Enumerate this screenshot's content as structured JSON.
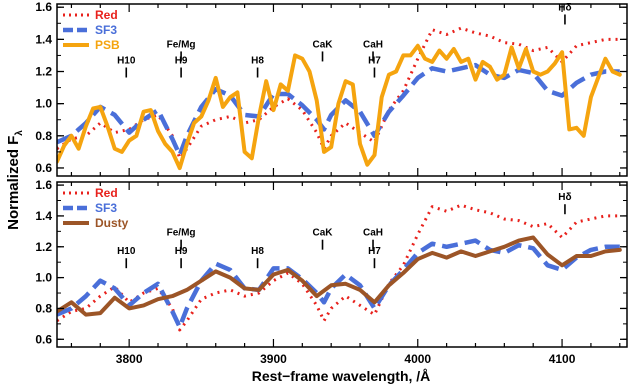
{
  "figure": {
    "ylabel_main": "Normalized F",
    "ylabel_sub": "λ",
    "xlabel": "Rest−frame wavelength, /Å"
  },
  "colors": {
    "red": "#e8211c",
    "sf3": "#4a6fd9",
    "psb": "#f5a40f",
    "dusty": "#9c5527"
  },
  "chart_data": [
    {
      "type": "line",
      "panel": "top",
      "xlim": [
        3750,
        4145
      ],
      "ylim": [
        0.55,
        1.62
      ],
      "xticks": [
        3800,
        3900,
        4000,
        4100
      ],
      "yticks": [
        0.6,
        0.8,
        1.0,
        1.2,
        1.4,
        1.6
      ],
      "grid": false,
      "legend_position": "top-left",
      "annotations": [
        {
          "label": "H10",
          "x": 3798,
          "y": 1.2
        },
        {
          "label": "Fe/Mg",
          "x": 3836,
          "y": 1.3
        },
        {
          "label": "H9",
          "x": 3836,
          "y": 1.2
        },
        {
          "label": "H8",
          "x": 3889,
          "y": 1.2
        },
        {
          "label": "CaK",
          "x": 3934,
          "y": 1.3
        },
        {
          "label": "CaH",
          "x": 3969,
          "y": 1.3
        },
        {
          "label": "H7",
          "x": 3970,
          "y": 1.2
        },
        {
          "label": "Hδ",
          "x": 4102,
          "y": 1.53
        }
      ],
      "series": [
        {
          "name": "Red",
          "style": "dotted",
          "color": "red",
          "x": [
            3750,
            3760,
            3770,
            3780,
            3790,
            3800,
            3810,
            3820,
            3830,
            3835,
            3840,
            3850,
            3860,
            3870,
            3880,
            3890,
            3900,
            3910,
            3920,
            3930,
            3935,
            3940,
            3950,
            3960,
            3970,
            3980,
            3990,
            4000,
            4010,
            4020,
            4030,
            4040,
            4050,
            4060,
            4070,
            4080,
            4090,
            4100,
            4110,
            4120,
            4130,
            4140
          ],
          "y": [
            0.72,
            0.78,
            0.8,
            0.88,
            0.82,
            0.84,
            0.9,
            0.93,
            0.8,
            0.66,
            0.72,
            0.86,
            0.9,
            0.92,
            0.88,
            0.9,
            0.98,
            1.03,
            0.96,
            0.82,
            0.72,
            0.8,
            0.88,
            0.82,
            0.76,
            0.96,
            1.08,
            1.28,
            1.46,
            1.43,
            1.47,
            1.44,
            1.42,
            1.38,
            1.37,
            1.33,
            1.35,
            1.26,
            1.36,
            1.38,
            1.4,
            1.4
          ]
        },
        {
          "name": "SF3",
          "style": "dashed",
          "color": "sf3",
          "x": [
            3750,
            3760,
            3770,
            3780,
            3790,
            3800,
            3810,
            3820,
            3830,
            3835,
            3840,
            3850,
            3860,
            3870,
            3880,
            3890,
            3900,
            3910,
            3920,
            3930,
            3935,
            3940,
            3950,
            3960,
            3970,
            3980,
            3990,
            4000,
            4010,
            4020,
            4030,
            4040,
            4050,
            4060,
            4070,
            4080,
            4090,
            4100,
            4110,
            4120,
            4130,
            4140
          ],
          "y": [
            0.76,
            0.8,
            0.88,
            0.98,
            0.93,
            0.82,
            0.9,
            0.96,
            0.78,
            0.68,
            0.8,
            0.98,
            1.09,
            1.05,
            0.93,
            0.92,
            1.06,
            1.06,
            0.99,
            0.9,
            0.84,
            0.93,
            1.02,
            0.95,
            0.8,
            0.95,
            1.05,
            1.16,
            1.22,
            1.2,
            1.22,
            1.24,
            1.18,
            1.16,
            1.21,
            1.19,
            1.08,
            1.05,
            1.13,
            1.18,
            1.2,
            1.2
          ]
        },
        {
          "name": "PSB",
          "style": "solid",
          "color": "psb",
          "x": [
            3750,
            3755,
            3760,
            3765,
            3770,
            3775,
            3780,
            3785,
            3790,
            3795,
            3800,
            3805,
            3810,
            3815,
            3820,
            3825,
            3830,
            3835,
            3840,
            3845,
            3850,
            3855,
            3860,
            3865,
            3870,
            3875,
            3880,
            3885,
            3890,
            3895,
            3900,
            3905,
            3910,
            3915,
            3920,
            3925,
            3930,
            3935,
            3940,
            3945,
            3950,
            3955,
            3960,
            3965,
            3970,
            3975,
            3980,
            3985,
            3990,
            3995,
            4000,
            4005,
            4010,
            4015,
            4020,
            4025,
            4030,
            4035,
            4040,
            4045,
            4050,
            4055,
            4060,
            4065,
            4070,
            4075,
            4080,
            4085,
            4090,
            4095,
            4100,
            4105,
            4110,
            4115,
            4120,
            4125,
            4130,
            4135,
            4140
          ],
          "y": [
            0.64,
            0.74,
            0.8,
            0.72,
            0.86,
            0.97,
            0.98,
            0.86,
            0.72,
            0.7,
            0.77,
            0.8,
            0.95,
            0.96,
            0.83,
            0.75,
            0.7,
            0.6,
            0.75,
            0.88,
            0.92,
            1.02,
            1.16,
            0.98,
            1.04,
            1.07,
            0.7,
            0.66,
            0.92,
            1.14,
            0.96,
            1.12,
            1.08,
            1.3,
            1.28,
            1.2,
            1.02,
            0.7,
            0.73,
            1.0,
            1.14,
            1.12,
            0.75,
            0.62,
            0.68,
            1.04,
            1.18,
            1.2,
            1.3,
            1.3,
            1.36,
            1.28,
            1.26,
            1.33,
            1.28,
            1.34,
            1.26,
            1.28,
            1.15,
            1.26,
            1.23,
            1.15,
            1.18,
            1.35,
            1.22,
            1.34,
            1.2,
            1.18,
            1.2,
            1.25,
            1.32,
            0.84,
            0.85,
            0.8,
            1.04,
            1.16,
            1.28,
            1.2,
            1.18
          ]
        }
      ]
    },
    {
      "type": "line",
      "panel": "bottom",
      "xlim": [
        3750,
        4145
      ],
      "ylim": [
        0.55,
        1.62
      ],
      "xticks": [
        3800,
        3900,
        4000,
        4100
      ],
      "yticks": [
        0.6,
        0.8,
        1.0,
        1.2,
        1.4,
        1.6
      ],
      "grid": false,
      "legend_position": "top-left",
      "annotations": [
        {
          "label": "H10",
          "x": 3798,
          "y": 1.1
        },
        {
          "label": "Fe/Mg",
          "x": 3836,
          "y": 1.22
        },
        {
          "label": "H9",
          "x": 3836,
          "y": 1.1
        },
        {
          "label": "H8",
          "x": 3889,
          "y": 1.1
        },
        {
          "label": "CaK",
          "x": 3934,
          "y": 1.22
        },
        {
          "label": "CaH",
          "x": 3969,
          "y": 1.22
        },
        {
          "label": "H7",
          "x": 3970,
          "y": 1.1
        },
        {
          "label": "Hδ",
          "x": 4102,
          "y": 1.45
        }
      ],
      "series": [
        {
          "name": "Red",
          "style": "dotted",
          "color": "red",
          "x": [
            3750,
            3760,
            3770,
            3780,
            3790,
            3800,
            3810,
            3820,
            3830,
            3835,
            3840,
            3850,
            3860,
            3870,
            3880,
            3890,
            3900,
            3910,
            3920,
            3930,
            3935,
            3940,
            3950,
            3960,
            3970,
            3980,
            3990,
            4000,
            4010,
            4020,
            4030,
            4040,
            4050,
            4060,
            4070,
            4080,
            4090,
            4100,
            4110,
            4120,
            4130,
            4140
          ],
          "y": [
            0.72,
            0.78,
            0.8,
            0.88,
            0.94,
            0.84,
            0.9,
            0.93,
            0.8,
            0.66,
            0.72,
            0.86,
            0.9,
            0.92,
            0.88,
            0.9,
            0.98,
            1.03,
            0.96,
            0.82,
            0.72,
            0.8,
            0.88,
            0.82,
            0.76,
            0.96,
            1.08,
            1.28,
            1.46,
            1.43,
            1.47,
            1.44,
            1.42,
            1.38,
            1.37,
            1.33,
            1.35,
            1.26,
            1.36,
            1.38,
            1.4,
            1.4
          ]
        },
        {
          "name": "SF3",
          "style": "dashed",
          "color": "sf3",
          "x": [
            3750,
            3760,
            3770,
            3780,
            3790,
            3800,
            3810,
            3820,
            3830,
            3835,
            3840,
            3850,
            3860,
            3870,
            3880,
            3890,
            3900,
            3910,
            3920,
            3930,
            3935,
            3940,
            3950,
            3960,
            3970,
            3980,
            3990,
            4000,
            4010,
            4020,
            4030,
            4040,
            4050,
            4060,
            4070,
            4080,
            4090,
            4100,
            4110,
            4120,
            4130,
            4140
          ],
          "y": [
            0.76,
            0.8,
            0.88,
            0.98,
            0.93,
            0.82,
            0.9,
            0.96,
            0.78,
            0.68,
            0.8,
            0.98,
            1.09,
            1.05,
            0.93,
            0.92,
            1.06,
            1.06,
            0.99,
            0.9,
            0.84,
            0.93,
            1.02,
            0.95,
            0.8,
            0.95,
            1.05,
            1.16,
            1.22,
            1.2,
            1.22,
            1.24,
            1.18,
            1.16,
            1.21,
            1.19,
            1.08,
            1.05,
            1.13,
            1.18,
            1.2,
            1.2
          ]
        },
        {
          "name": "Dusty",
          "style": "solid",
          "color": "dusty",
          "x": [
            3750,
            3760,
            3770,
            3780,
            3790,
            3800,
            3810,
            3820,
            3830,
            3840,
            3850,
            3860,
            3870,
            3880,
            3890,
            3900,
            3910,
            3920,
            3930,
            3940,
            3950,
            3960,
            3970,
            3980,
            3990,
            4000,
            4010,
            4020,
            4030,
            4040,
            4050,
            4060,
            4070,
            4080,
            4090,
            4100,
            4110,
            4120,
            4130,
            4140
          ],
          "y": [
            0.78,
            0.84,
            0.76,
            0.77,
            0.87,
            0.8,
            0.82,
            0.86,
            0.88,
            0.92,
            0.98,
            1.04,
            1.0,
            0.93,
            0.92,
            1.02,
            1.05,
            0.98,
            0.88,
            0.95,
            0.96,
            0.92,
            0.84,
            0.95,
            1.03,
            1.12,
            1.16,
            1.13,
            1.17,
            1.14,
            1.17,
            1.2,
            1.24,
            1.26,
            1.15,
            1.08,
            1.14,
            1.14,
            1.17,
            1.18
          ]
        }
      ]
    }
  ]
}
